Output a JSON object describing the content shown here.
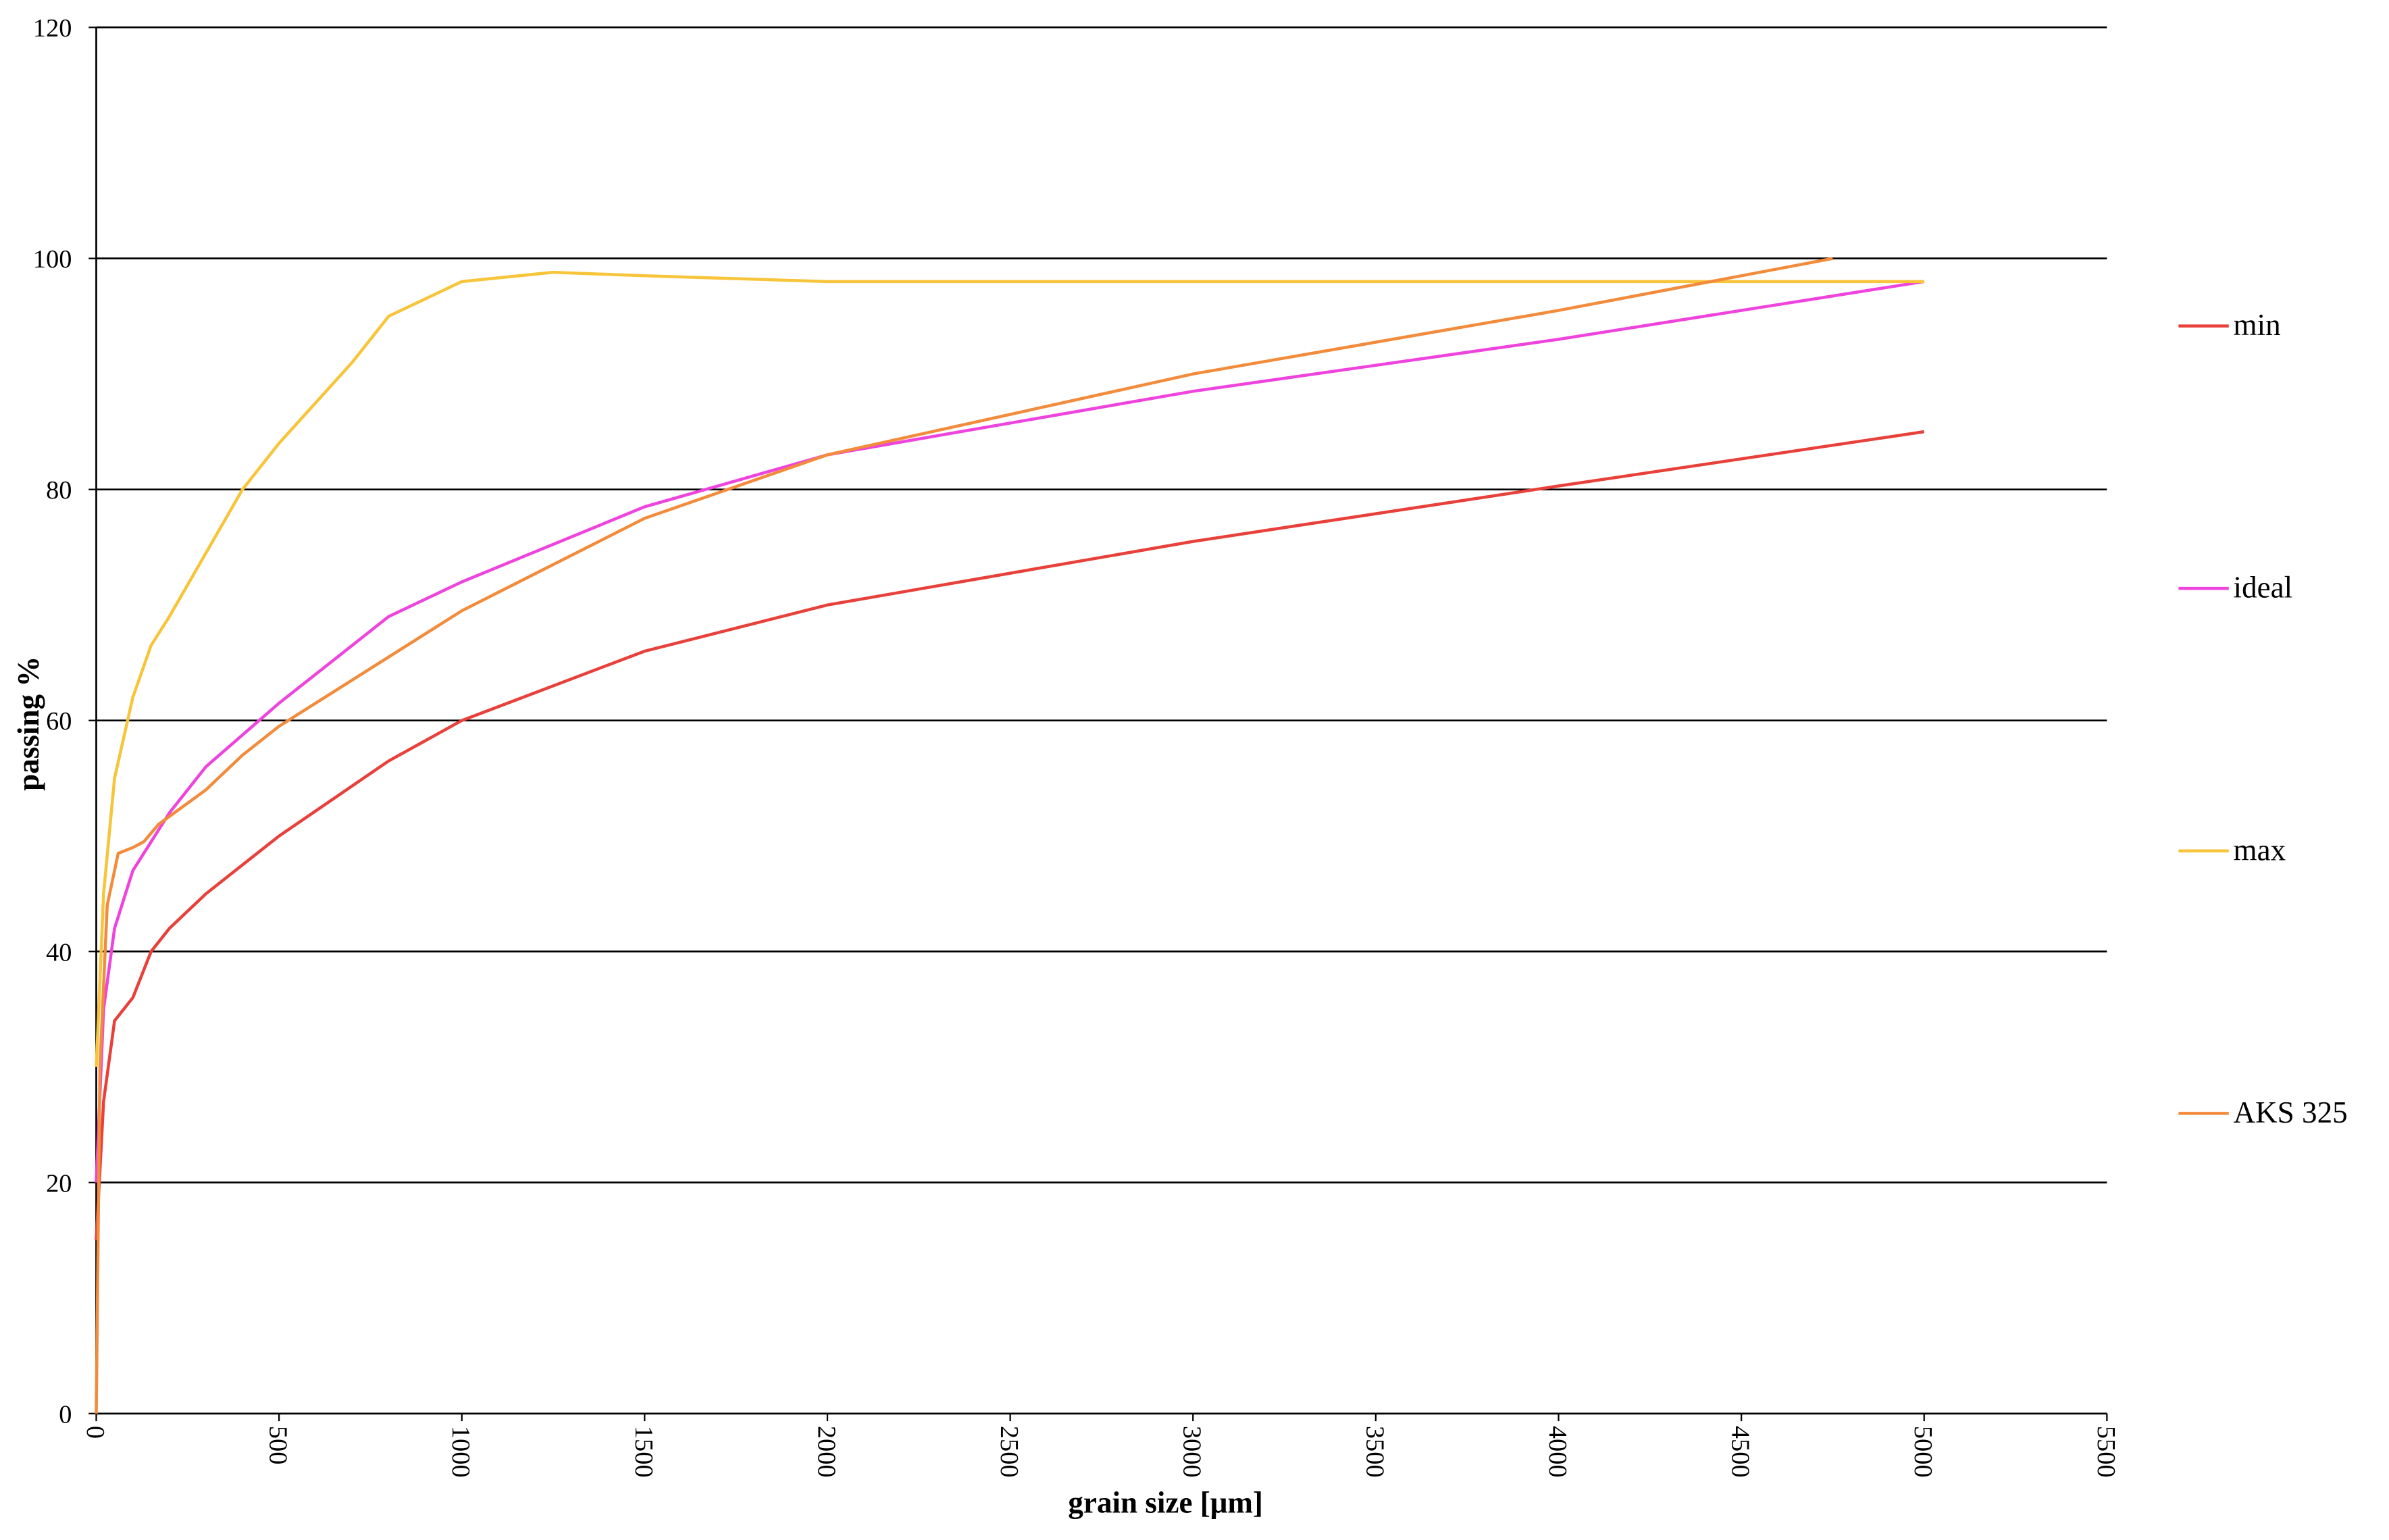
{
  "chart_data": {
    "type": "line",
    "x_label": "grain size [μm]",
    "y_label": "passing %",
    "xlim": [
      0,
      5500
    ],
    "xticks": [
      0,
      500,
      1000,
      1500,
      2000,
      2500,
      3000,
      3500,
      4000,
      4500,
      5000,
      5500
    ],
    "ylim": [
      0,
      120
    ],
    "yticks": [
      0,
      20,
      40,
      60,
      80,
      100,
      120
    ],
    "grid": true,
    "legend": "right",
    "series": [
      {
        "name": "min",
        "color": "#e8403a",
        "x": [
          0,
          20,
          50,
          100,
          150,
          200,
          300,
          500,
          800,
          1000,
          1500,
          2000,
          3000,
          4000,
          5000
        ],
        "values": [
          15,
          27,
          34,
          36,
          40,
          42,
          45,
          50,
          56.5,
          60,
          66,
          70,
          75.5,
          80.3,
          85
        ]
      },
      {
        "name": "ideal",
        "color": "#ee44dd",
        "x": [
          0,
          20,
          50,
          100,
          200,
          300,
          500,
          800,
          1000,
          1500,
          2000,
          3000,
          4000,
          5000
        ],
        "values": [
          20,
          35,
          42,
          47,
          52,
          56,
          61.5,
          69,
          72,
          78.5,
          83,
          88.5,
          93,
          98
        ]
      },
      {
        "name": "max",
        "color": "#f7c43a",
        "x": [
          0,
          20,
          50,
          100,
          150,
          200,
          400,
          500,
          700,
          800,
          1000,
          1250,
          1500,
          2000,
          5000
        ],
        "values": [
          30,
          45,
          55,
          62,
          66.5,
          69,
          80,
          84,
          91,
          95,
          98,
          98.8,
          98.5,
          98,
          98
        ]
      },
      {
        "name": "AKS 325",
        "color": "#f28c3c",
        "x": [
          0,
          10,
          30,
          60,
          100,
          130,
          170,
          300,
          400,
          500,
          1000,
          1500,
          2000,
          3000,
          4000,
          4750
        ],
        "values": [
          0,
          30,
          44,
          48.5,
          49,
          49.5,
          51,
          54,
          57,
          59.5,
          69.5,
          77.5,
          83,
          90,
          95.5,
          100
        ]
      }
    ]
  }
}
